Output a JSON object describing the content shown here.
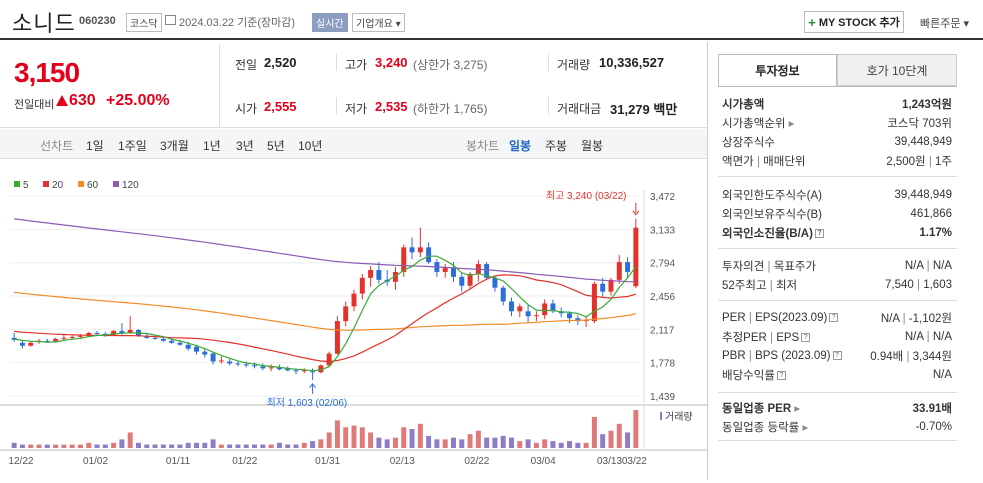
{
  "header": {
    "stock_name": "소니드",
    "stock_code": "060230",
    "market": "코스닥",
    "date": "2024.03.22 기준(장마감)",
    "realtime_label": "실시간",
    "overview_label": "기업개요 ▾",
    "mystock_label": "MY STOCK 추가",
    "mystock_plus": "+",
    "quick_order": "빠른주문 ▾"
  },
  "price": {
    "current": "3,150",
    "change_label": "전일대비",
    "change_amount": "630",
    "change_pct": "+25.00%"
  },
  "quote": {
    "prev_close_label": "전일",
    "prev_close": "2,520",
    "high_label": "고가",
    "high": "3,240",
    "upper_limit": "(상한가 3,275)",
    "volume_label": "거래량",
    "volume": "10,336,527",
    "open_label": "시가",
    "open": "2,555",
    "low_label": "저가",
    "low": "2,535",
    "lower_limit": "(하한가 1,765)",
    "amount_label": "거래대금",
    "amount": "31,279 백만"
  },
  "period_bar": {
    "select_label": "선차트",
    "periods": [
      "1일",
      "1주일",
      "3개월",
      "1년",
      "3년",
      "5년",
      "10년"
    ],
    "candle_label": "봉차트",
    "candles": [
      "일봉",
      "주봉",
      "월봉"
    ],
    "selected_candle": "일봉"
  },
  "chart_legend": [
    {
      "name": "5",
      "color": "#3aaa35"
    },
    {
      "name": "20",
      "color": "#e3322b"
    },
    {
      "name": "60",
      "color": "#f28c28"
    },
    {
      "name": "120",
      "color": "#8e5bb5"
    }
  ],
  "chart_data": {
    "type": "candlestick",
    "y_ticks": [
      "3,472",
      "3,133",
      "2,794",
      "2,456",
      "2,117",
      "1,778",
      "1,439"
    ],
    "ylim": [
      1439,
      3472
    ],
    "x_labels": [
      "12/22",
      "01/02",
      "01/11",
      "01/22",
      "01/31",
      "02/13",
      "02/22",
      "03/04",
      "03/13",
      "03/22"
    ],
    "high_annotation": "최고 3,240 (03/22)",
    "low_annotation": "최저 1,603 (02/06)",
    "volume_label": "거래량",
    "ohlc": [
      [
        2030,
        2080,
        1990,
        2010
      ],
      [
        1980,
        2000,
        1920,
        1950
      ],
      [
        1950,
        1990,
        1940,
        1980
      ],
      [
        1990,
        2020,
        1970,
        2000
      ],
      [
        2000,
        2020,
        1980,
        1990
      ],
      [
        1995,
        2030,
        1985,
        2020
      ],
      [
        2020,
        2060,
        2000,
        2030
      ],
      [
        2030,
        2060,
        2010,
        2040
      ],
      [
        2040,
        2070,
        2020,
        2050
      ],
      [
        2050,
        2090,
        2040,
        2080
      ],
      [
        2080,
        2100,
        2050,
        2070
      ],
      [
        2070,
        2090,
        2040,
        2050
      ],
      [
        2060,
        2110,
        2050,
        2100
      ],
      [
        2100,
        2180,
        2060,
        2080
      ],
      [
        2080,
        2250,
        2070,
        2110
      ],
      [
        2110,
        2120,
        2040,
        2050
      ],
      [
        2050,
        2070,
        2020,
        2030
      ],
      [
        2030,
        2060,
        2010,
        2020
      ],
      [
        2020,
        2050,
        1990,
        2000
      ],
      [
        2000,
        2030,
        1970,
        1980
      ],
      [
        1980,
        2010,
        1950,
        1960
      ],
      [
        1960,
        1990,
        1900,
        1920
      ],
      [
        1940,
        1960,
        1860,
        1890
      ],
      [
        1890,
        1920,
        1830,
        1860
      ],
      [
        1870,
        1890,
        1760,
        1790
      ],
      [
        1800,
        1840,
        1770,
        1800
      ],
      [
        1790,
        1820,
        1750,
        1770
      ],
      [
        1770,
        1800,
        1740,
        1760
      ],
      [
        1760,
        1790,
        1730,
        1750
      ],
      [
        1750,
        1780,
        1720,
        1740
      ],
      [
        1740,
        1770,
        1700,
        1720
      ],
      [
        1720,
        1760,
        1690,
        1730
      ],
      [
        1730,
        1760,
        1700,
        1710
      ],
      [
        1720,
        1740,
        1690,
        1700
      ],
      [
        1700,
        1720,
        1660,
        1690
      ],
      [
        1690,
        1720,
        1670,
        1700
      ],
      [
        1690,
        1720,
        1603,
        1680
      ],
      [
        1680,
        1760,
        1670,
        1750
      ],
      [
        1750,
        1890,
        1730,
        1870
      ],
      [
        1870,
        2250,
        1860,
        2200
      ],
      [
        2200,
        2400,
        2150,
        2350
      ],
      [
        2350,
        2520,
        2300,
        2480
      ],
      [
        2480,
        2680,
        2420,
        2640
      ],
      [
        2640,
        2760,
        2550,
        2720
      ],
      [
        2720,
        2800,
        2580,
        2620
      ],
      [
        2620,
        2720,
        2560,
        2600
      ],
      [
        2600,
        2750,
        2520,
        2700
      ],
      [
        2700,
        2980,
        2650,
        2950
      ],
      [
        2950,
        3050,
        2830,
        2900
      ],
      [
        2900,
        3150,
        2850,
        2950
      ],
      [
        2950,
        3000,
        2780,
        2800
      ],
      [
        2800,
        2830,
        2650,
        2700
      ],
      [
        2700,
        2780,
        2640,
        2740
      ],
      [
        2740,
        2800,
        2600,
        2650
      ],
      [
        2650,
        2700,
        2500,
        2560
      ],
      [
        2560,
        2700,
        2520,
        2680
      ],
      [
        2680,
        2820,
        2600,
        2780
      ],
      [
        2780,
        2800,
        2620,
        2640
      ],
      [
        2640,
        2660,
        2500,
        2540
      ],
      [
        2540,
        2560,
        2360,
        2400
      ],
      [
        2400,
        2440,
        2250,
        2300
      ],
      [
        2300,
        2380,
        2240,
        2350
      ],
      [
        2300,
        2360,
        2180,
        2250
      ],
      [
        2250,
        2300,
        2200,
        2260
      ],
      [
        2260,
        2420,
        2220,
        2380
      ],
      [
        2380,
        2420,
        2280,
        2300
      ],
      [
        2300,
        2340,
        2240,
        2280
      ],
      [
        2280,
        2300,
        2180,
        2230
      ],
      [
        2230,
        2260,
        2160,
        2200
      ],
      [
        2200,
        2240,
        2140,
        2210
      ],
      [
        2200,
        2600,
        2180,
        2580
      ],
      [
        2580,
        2640,
        2450,
        2500
      ],
      [
        2500,
        2640,
        2460,
        2620
      ],
      [
        2620,
        2870,
        2580,
        2800
      ],
      [
        2800,
        2850,
        2640,
        2700
      ],
      [
        2555,
        3240,
        2535,
        3150
      ]
    ],
    "volume": [
      3,
      2,
      2,
      2,
      2,
      2,
      2,
      2,
      2,
      3,
      2,
      2,
      3,
      5,
      9,
      3,
      2,
      2,
      2,
      2,
      2,
      3,
      3,
      3,
      5,
      2,
      2,
      2,
      2,
      2,
      2,
      2,
      3,
      2,
      2,
      3,
      4,
      5,
      9,
      16,
      12,
      13,
      12,
      9,
      6,
      5,
      6,
      12,
      11,
      14,
      7,
      5,
      5,
      6,
      5,
      8,
      10,
      6,
      6,
      7,
      6,
      4,
      5,
      3,
      5,
      4,
      3,
      4,
      3,
      3,
      18,
      8,
      10,
      14,
      9,
      22
    ]
  },
  "invest_tabs": [
    "투자정보",
    "호가 10단계"
  ],
  "invest_info": {
    "mcap_label": "시가총액",
    "mcap": "1,243억원",
    "mcap_rank_label": "시가총액순위",
    "mcap_rank": "코스닥 703위",
    "shares_label": "상장주식수",
    "shares": "39,448,949",
    "par_label": "액면가",
    "trade_unit_label": "매매단위",
    "par": "2,500원",
    "trade_unit": "1주",
    "foreign_limit_label": "외국인한도주식수(A)",
    "foreign_limit": "39,448,949",
    "foreign_hold_label": "외국인보유주식수(B)",
    "foreign_hold": "461,866",
    "foreign_ratio_label": "외국인소진율(B/A)",
    "foreign_ratio": "1.17%",
    "opinion_label": "투자의견",
    "target_label": "목표주가",
    "opinion": "N/A",
    "target": "N/A",
    "w52_high_label": "52주최고",
    "w52_low_label": "최저",
    "w52_high": "7,540",
    "w52_low": "1,603",
    "per_label": "PER",
    "eps_label": "EPS(2023.09)",
    "per": "N/A",
    "eps": "-1,102원",
    "est_per_label": "추정PER",
    "est_eps_label": "EPS",
    "est_per": "N/A",
    "est_eps": "N/A",
    "pbr_label": "PBR",
    "bps_label": "BPS (2023.09)",
    "pbr": "0.94배",
    "bps": "3,344원",
    "div_label": "배당수익률",
    "div": "N/A",
    "ind_per_label": "동일업종 PER",
    "ind_per": "33.91배",
    "ind_chg_label": "동일업종 등락률",
    "ind_chg": "-0.70%"
  }
}
